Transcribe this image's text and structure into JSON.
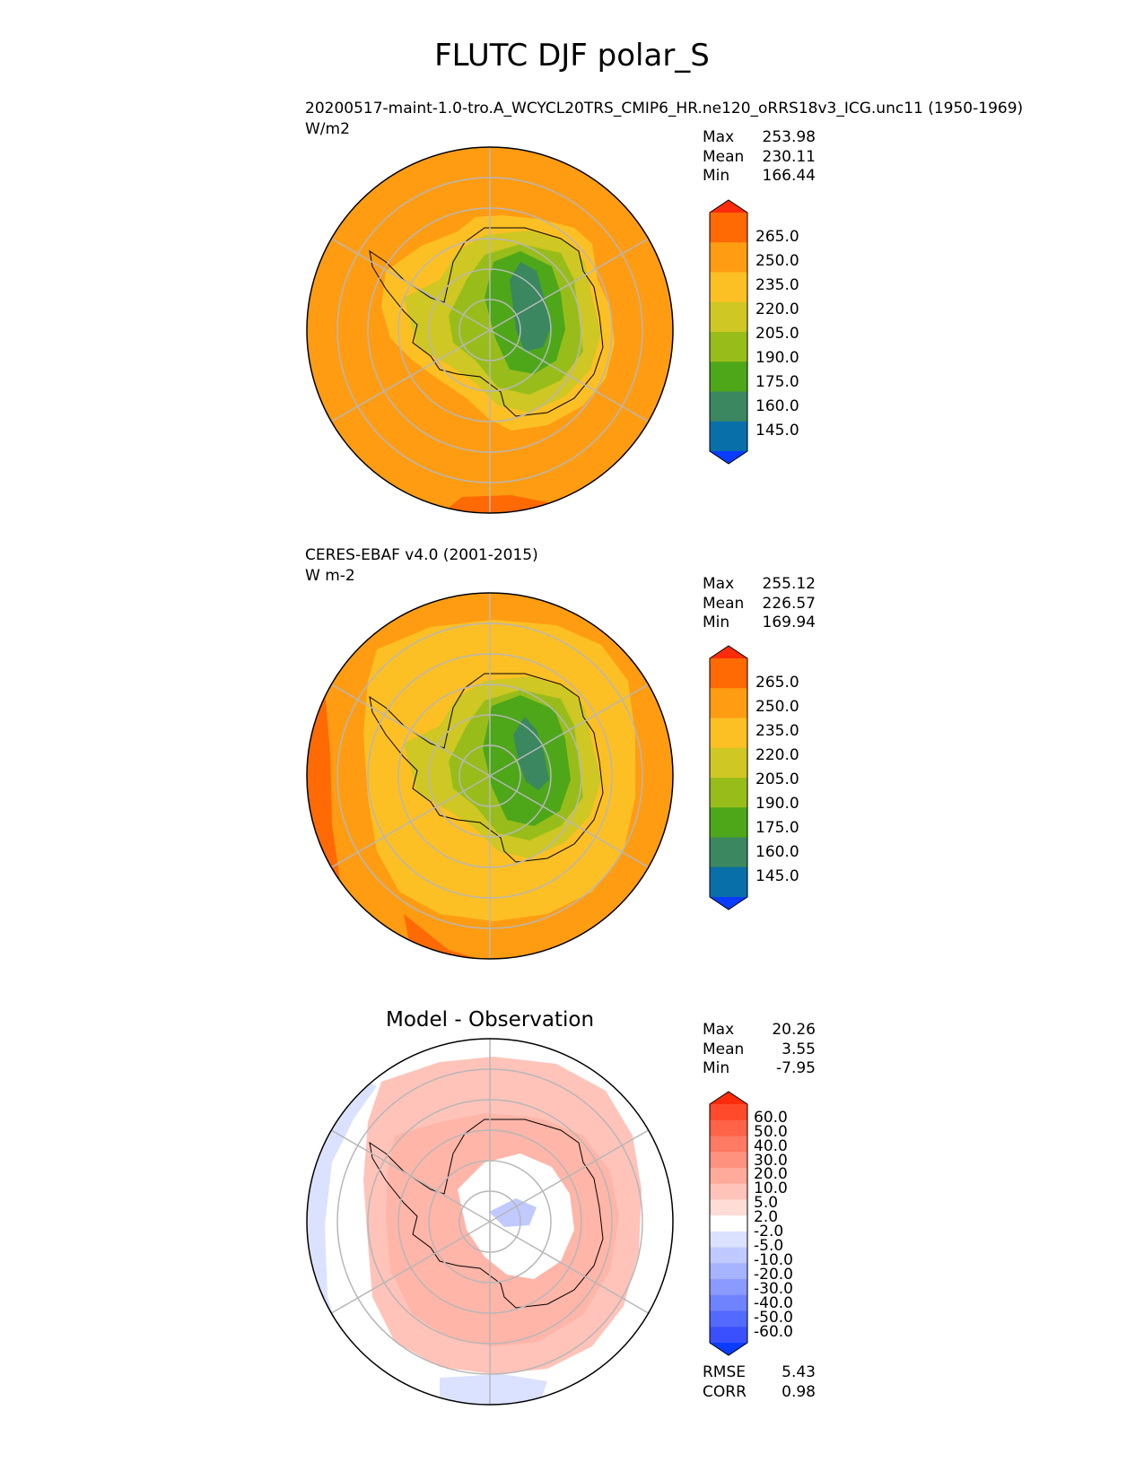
{
  "figure": {
    "title": "FLUTC DJF polar_S"
  },
  "panels": [
    {
      "id": "test",
      "title": "20200517-maint-1.0-tro.A_WCYCL20TRS_CMIP6_HR.ne120_oRRS18v3_ICG.unc11 (1950-1969)",
      "units": "W/m2",
      "stats": [
        {
          "label": "Max",
          "value": "253.98"
        },
        {
          "label": "Mean",
          "value": "230.11"
        },
        {
          "label": "Min",
          "value": "166.44"
        }
      ]
    },
    {
      "id": "ref",
      "title": "CERES-EBAF v4.0 (2001-2015)",
      "units": "W m-2",
      "stats": [
        {
          "label": "Max",
          "value": "255.12"
        },
        {
          "label": "Mean",
          "value": "226.57"
        },
        {
          "label": "Min",
          "value": "169.94"
        }
      ]
    },
    {
      "id": "diff",
      "title": "Model - Observation",
      "stats": [
        {
          "label": "Max",
          "value": "20.26"
        },
        {
          "label": "Mean",
          "value": "3.55"
        },
        {
          "label": "Min",
          "value": "-7.95"
        }
      ],
      "metrics": [
        {
          "label": "RMSE",
          "value": "5.43"
        },
        {
          "label": "CORR",
          "value": "0.98"
        }
      ]
    }
  ],
  "colorbars": {
    "field": {
      "tick_labels": [
        "265.0",
        "250.0",
        "235.0",
        "220.0",
        "205.0",
        "190.0",
        "175.0",
        "160.0",
        "145.0"
      ],
      "colors": [
        "#ff2b0a",
        "#ff6a05",
        "#ff9c12",
        "#fdc024",
        "#cfc723",
        "#98bd1b",
        "#4da719",
        "#3a8760",
        "#086fa8",
        "#0a3cff"
      ],
      "extend": "both"
    },
    "diff": {
      "tick_labels": [
        "60.0",
        "50.0",
        "40.0",
        "30.0",
        "20.0",
        "10.0",
        "5.0",
        "2.0",
        "-2.0",
        "-5.0",
        "-10.0",
        "-20.0",
        "-30.0",
        "-40.0",
        "-50.0",
        "-60.0"
      ],
      "colors": [
        "#ff2b0a",
        "#ff4a2c",
        "#ff6347",
        "#ff7a63",
        "#ff927e",
        "#ffaa9b",
        "#ffc3b9",
        "#ffdcd6",
        "#ffffff",
        "#dbe2ff",
        "#c1caff",
        "#a6b3ff",
        "#8a9aff",
        "#6f82ff",
        "#5469ff",
        "#3a50ff",
        "#0a3cff"
      ],
      "extend": "both"
    }
  },
  "chart_data": [
    {
      "type": "heatmap",
      "projection": "south polar stereographic",
      "title": "20200517-maint-1.0-tro.A_WCYCL20TRS_CMIP6_HR.ne120_oRRS18v3_ICG.unc11 (1950-1969)",
      "units": "W/m2",
      "levels": [
        145,
        160,
        175,
        190,
        205,
        220,
        235,
        250,
        265
      ],
      "max": 253.98,
      "mean": 230.11,
      "min": 166.44,
      "grid": true
    },
    {
      "type": "heatmap",
      "projection": "south polar stereographic",
      "title": "CERES-EBAF v4.0 (2001-2015)",
      "units": "W m-2",
      "levels": [
        145,
        160,
        175,
        190,
        205,
        220,
        235,
        250,
        265
      ],
      "max": 255.12,
      "mean": 226.57,
      "min": 169.94,
      "grid": true
    },
    {
      "type": "heatmap",
      "projection": "south polar stereographic",
      "title": "Model - Observation",
      "levels": [
        -60,
        -50,
        -40,
        -30,
        -20,
        -10,
        -5,
        -2,
        2,
        5,
        10,
        20,
        30,
        40,
        50,
        60
      ],
      "max": 20.26,
      "mean": 3.55,
      "min": -7.95,
      "rmse": 5.43,
      "corr": 0.98,
      "grid": true
    }
  ]
}
